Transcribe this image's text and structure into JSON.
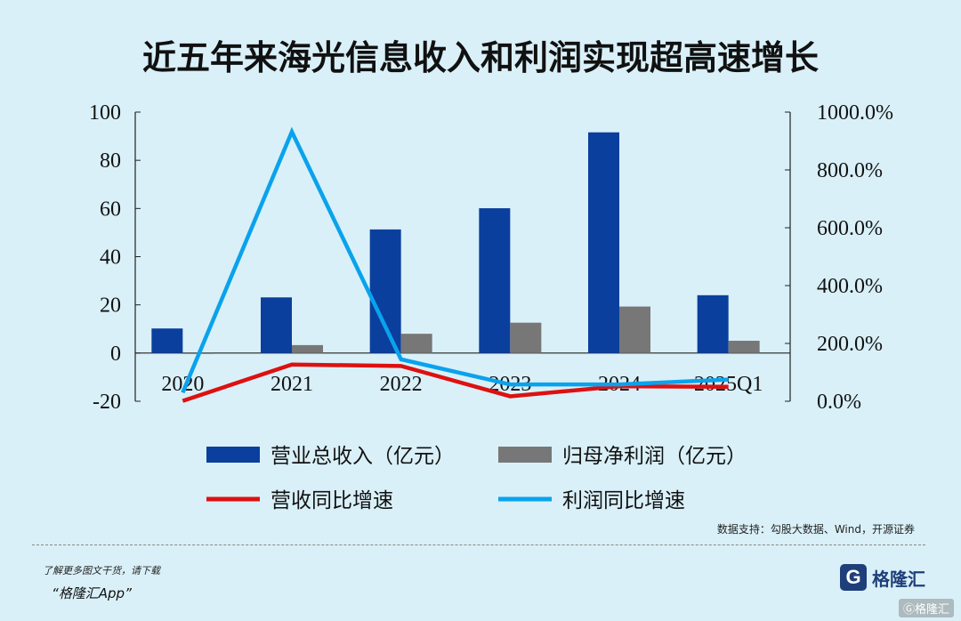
{
  "title": "近五年来海光信息收入和利润实现超高速增长",
  "chart_data": {
    "type": "bar",
    "categories": [
      "2020",
      "2021",
      "2022",
      "2023",
      "2024",
      "2025Q1"
    ],
    "series": [
      {
        "name": "营业总收入（亿元）",
        "type": "bar",
        "axis": "left",
        "color": "#0a3f9e",
        "values": [
          10.2,
          23.1,
          51.3,
          60.1,
          91.6,
          24.0
        ]
      },
      {
        "name": "归母净利润（亿元）",
        "type": "bar",
        "axis": "left",
        "color": "#777777",
        "values": [
          -0.2,
          3.3,
          8.0,
          12.6,
          19.3,
          5.1
        ]
      },
      {
        "name": "营收同比增速",
        "type": "line",
        "axis": "right",
        "color": "#dd1111",
        "values": [
          0.01,
          1.27,
          1.22,
          0.17,
          0.52,
          0.5
        ]
      },
      {
        "name": "利润同比增速",
        "type": "line",
        "axis": "right",
        "color": "#0aa2ec",
        "values": [
          0.3,
          9.32,
          1.45,
          0.58,
          0.58,
          0.75
        ]
      }
    ],
    "left_axis": {
      "ylim": [
        -20,
        100
      ],
      "ticks": [
        "100",
        "80",
        "60",
        "40",
        "20",
        "0",
        "-20"
      ]
    },
    "right_axis": {
      "ylim": [
        0,
        10
      ],
      "ticks": [
        "1000.0%",
        "800.0%",
        "600.0%",
        "400.0%",
        "200.0%",
        "0.0%"
      ]
    },
    "legend_position": "bottom",
    "grid": false
  },
  "source": "数据支持：勾股大数据、Wind，开源证券",
  "promo": {
    "line1": "了解更多图文干货，请下载",
    "line2": "“格隆汇App”"
  },
  "brand": {
    "icon": "G",
    "name": "格隆汇"
  },
  "corner_mark": "Ⓖ格隆汇"
}
